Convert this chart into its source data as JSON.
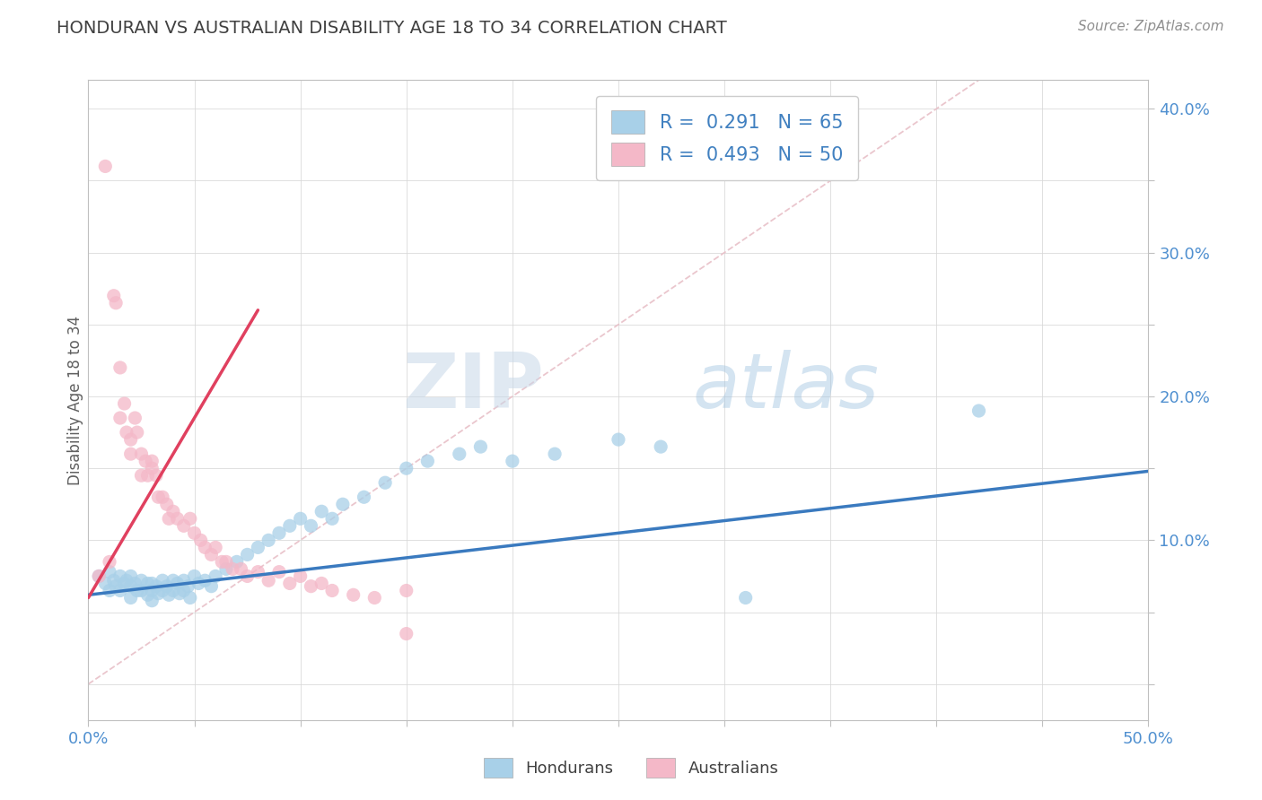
{
  "title": "HONDURAN VS AUSTRALIAN DISABILITY AGE 18 TO 34 CORRELATION CHART",
  "source_text": "Source: ZipAtlas.com",
  "ylabel": "Disability Age 18 to 34",
  "xlim": [
    0.0,
    0.5
  ],
  "ylim": [
    -0.025,
    0.42
  ],
  "xticks": [
    0.0,
    0.05,
    0.1,
    0.15,
    0.2,
    0.25,
    0.3,
    0.35,
    0.4,
    0.45,
    0.5
  ],
  "yticks": [
    0.0,
    0.05,
    0.1,
    0.15,
    0.2,
    0.25,
    0.3,
    0.35,
    0.4
  ],
  "honduran_color": "#a8d0e8",
  "australian_color": "#f4b8c8",
  "honduran_line_color": "#3a7abf",
  "australian_line_color": "#e0405f",
  "diag_line_color": "#e0b0c0",
  "grid_color": "#d8d8d8",
  "background_color": "#ffffff",
  "legend_R1": "0.291",
  "legend_N1": "65",
  "legend_R2": "0.493",
  "legend_N2": "50",
  "legend_label1": "Hondurans",
  "legend_label2": "Australians",
  "watermark_zip": "ZIP",
  "watermark_atlas": "atlas",
  "title_color": "#404040",
  "source_color": "#909090",
  "tick_color": "#5090d0",
  "ylabel_color": "#606060",
  "legend_text_color": "#4080c0",
  "honduran_x": [
    0.005,
    0.008,
    0.01,
    0.01,
    0.012,
    0.013,
    0.015,
    0.015,
    0.017,
    0.018,
    0.02,
    0.02,
    0.02,
    0.022,
    0.023,
    0.025,
    0.025,
    0.028,
    0.028,
    0.03,
    0.03,
    0.03,
    0.032,
    0.033,
    0.035,
    0.035,
    0.037,
    0.038,
    0.04,
    0.04,
    0.042,
    0.043,
    0.045,
    0.045,
    0.047,
    0.048,
    0.05,
    0.052,
    0.055,
    0.058,
    0.06,
    0.065,
    0.07,
    0.075,
    0.08,
    0.085,
    0.09,
    0.095,
    0.1,
    0.105,
    0.11,
    0.115,
    0.12,
    0.13,
    0.14,
    0.15,
    0.16,
    0.175,
    0.185,
    0.2,
    0.22,
    0.25,
    0.27,
    0.31,
    0.42
  ],
  "honduran_y": [
    0.075,
    0.07,
    0.078,
    0.065,
    0.072,
    0.068,
    0.075,
    0.065,
    0.07,
    0.072,
    0.075,
    0.068,
    0.06,
    0.07,
    0.065,
    0.072,
    0.065,
    0.07,
    0.062,
    0.07,
    0.065,
    0.058,
    0.068,
    0.063,
    0.072,
    0.065,
    0.068,
    0.062,
    0.072,
    0.065,
    0.07,
    0.063,
    0.072,
    0.065,
    0.068,
    0.06,
    0.075,
    0.07,
    0.072,
    0.068,
    0.075,
    0.08,
    0.085,
    0.09,
    0.095,
    0.1,
    0.105,
    0.11,
    0.115,
    0.11,
    0.12,
    0.115,
    0.125,
    0.13,
    0.14,
    0.15,
    0.155,
    0.16,
    0.165,
    0.155,
    0.16,
    0.17,
    0.165,
    0.06,
    0.19
  ],
  "australian_x": [
    0.005,
    0.008,
    0.01,
    0.012,
    0.013,
    0.015,
    0.015,
    0.017,
    0.018,
    0.02,
    0.02,
    0.022,
    0.023,
    0.025,
    0.025,
    0.027,
    0.028,
    0.03,
    0.03,
    0.032,
    0.033,
    0.035,
    0.037,
    0.038,
    0.04,
    0.042,
    0.045,
    0.048,
    0.05,
    0.053,
    0.055,
    0.058,
    0.06,
    0.063,
    0.065,
    0.068,
    0.072,
    0.075,
    0.08,
    0.085,
    0.09,
    0.095,
    0.1,
    0.105,
    0.11,
    0.115,
    0.125,
    0.135,
    0.15,
    0.15
  ],
  "australian_y": [
    0.075,
    0.36,
    0.085,
    0.27,
    0.265,
    0.22,
    0.185,
    0.195,
    0.175,
    0.17,
    0.16,
    0.185,
    0.175,
    0.145,
    0.16,
    0.155,
    0.145,
    0.155,
    0.15,
    0.145,
    0.13,
    0.13,
    0.125,
    0.115,
    0.12,
    0.115,
    0.11,
    0.115,
    0.105,
    0.1,
    0.095,
    0.09,
    0.095,
    0.085,
    0.085,
    0.08,
    0.08,
    0.075,
    0.078,
    0.072,
    0.078,
    0.07,
    0.075,
    0.068,
    0.07,
    0.065,
    0.062,
    0.06,
    0.065,
    0.035
  ],
  "aus_line_x": [
    0.0,
    0.08
  ],
  "aus_line_y_start": 0.06,
  "aus_line_y_end": 0.26,
  "hon_line_x_start": 0.0,
  "hon_line_x_end": 0.5,
  "hon_line_y_start": 0.062,
  "hon_line_y_end": 0.148
}
